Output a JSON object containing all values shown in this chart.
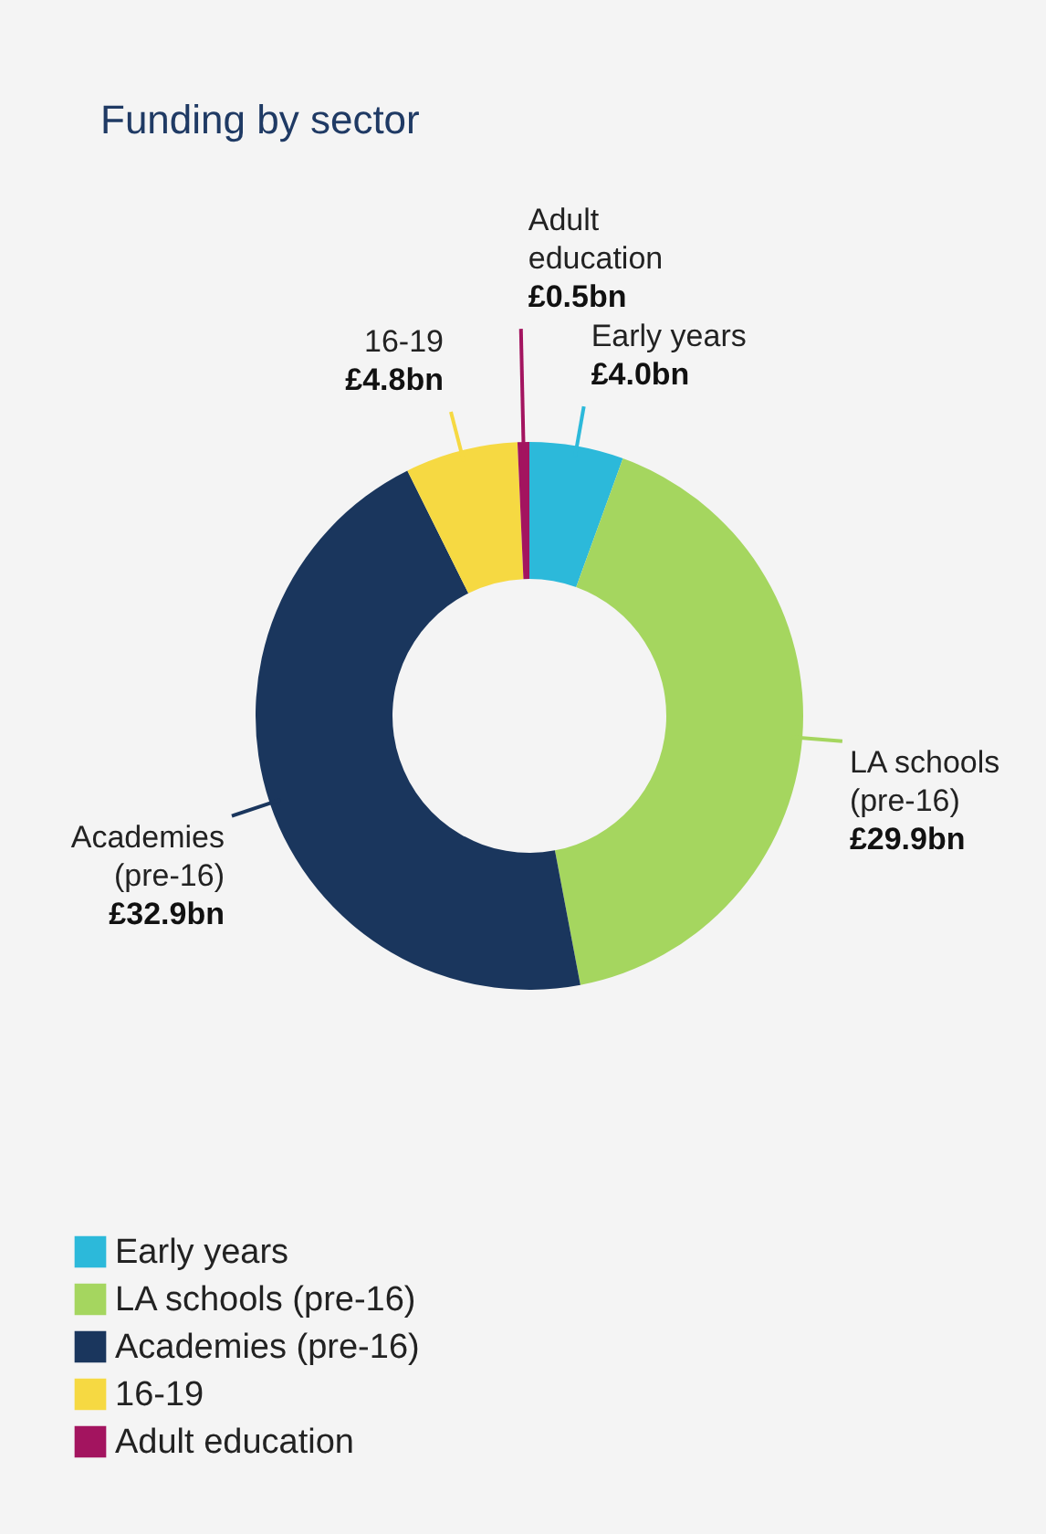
{
  "chart_data": {
    "type": "donut",
    "title": "Funding by sector",
    "categories": [
      "Early years",
      "LA schools (pre-16)",
      "Academies (pre-16)",
      "16-19",
      "Adult education"
    ],
    "values": [
      4.0,
      29.9,
      32.9,
      4.8,
      0.5
    ],
    "colors": [
      "#2cb9da",
      "#a5d65f",
      "#1a365d",
      "#f6d942",
      "#a3145f"
    ],
    "value_labels": [
      "£4.0bn",
      "£29.9bn",
      "£32.9bn",
      "£4.8bn",
      "£0.5bn"
    ],
    "legend": "bottom left"
  }
}
